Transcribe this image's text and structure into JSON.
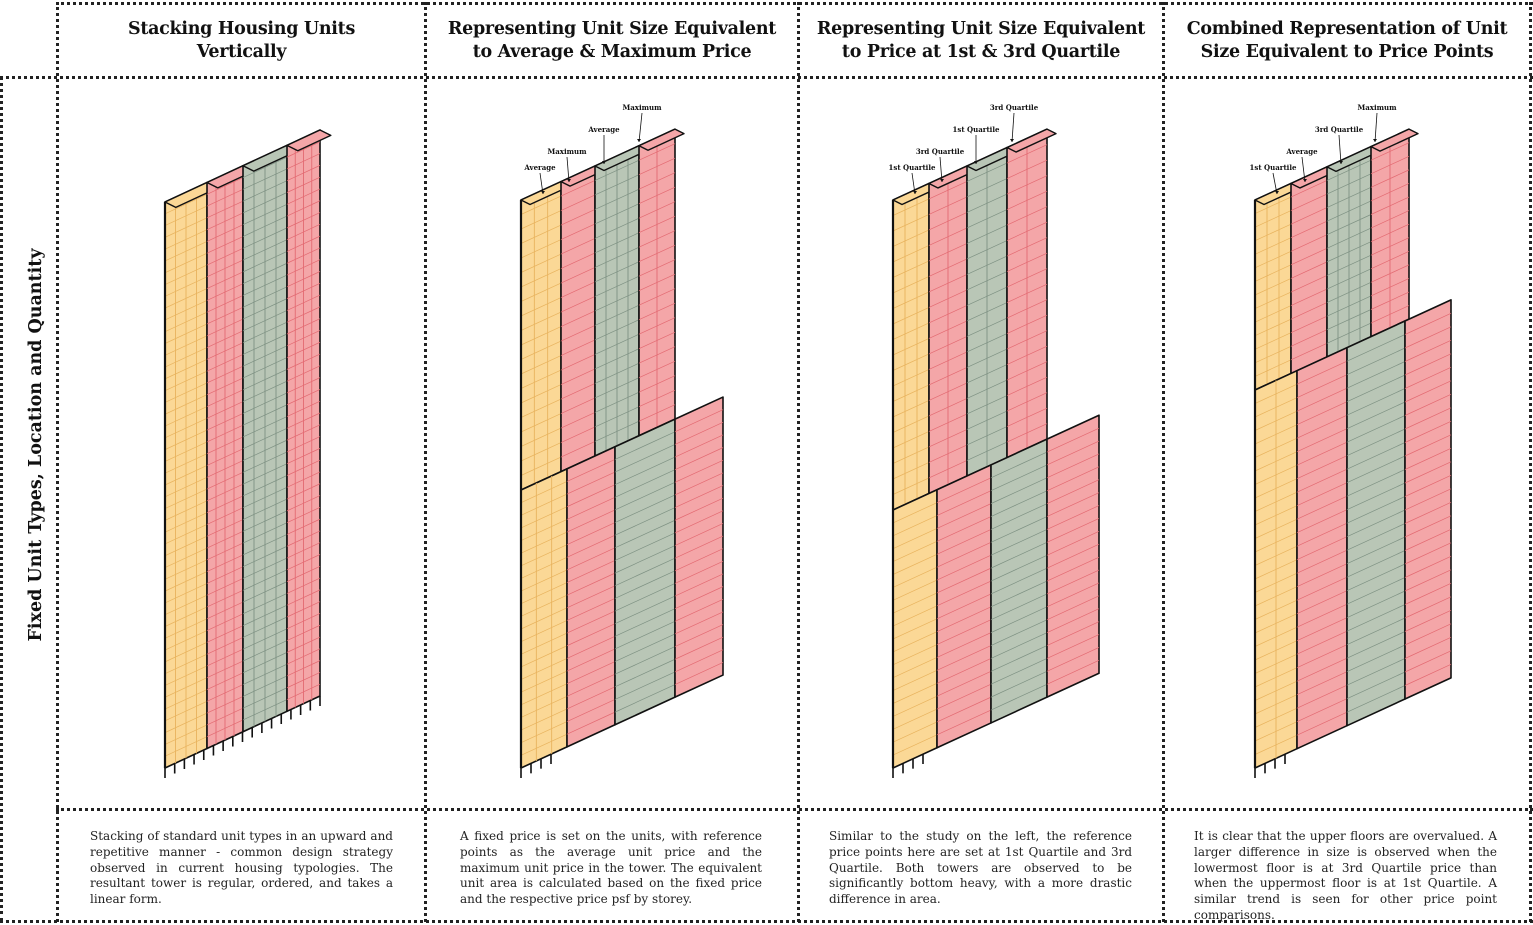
{
  "row_title": "Fixed Unit Types, Location and Quantity",
  "columns": [
    {
      "title_line1": "Stacking Housing Units",
      "title_line2": "Vertically",
      "description": "Stacking of standard unit types in an upward and repetitive manner - common design strategy observed in current housing typologies. The resultant tower is regular, ordered, and takes a linear form.",
      "labels": []
    },
    {
      "title_line1": "Representing Unit Size Equivalent",
      "title_line2": "to Average & Maximum Price",
      "description": "A fixed price is set on the units, with reference points as the average unit price and the maximum unit price in the tower. The equivalent unit area is calculated based on the fixed price and the respective price psf by storey.",
      "labels": [
        "Average",
        "Maximum",
        "Average",
        "Maximum"
      ]
    },
    {
      "title_line1": "Representing Unit Size Equivalent",
      "title_line2": "to Price at 1st & 3rd Quartile",
      "description": "Similar to the study on the left, the reference price points here are set at 1st Quartile and 3rd Quartile. Both towers are observed to be significantly bottom heavy, with a more drastic difference in area.",
      "labels": [
        "1st Quartile",
        "3rd Quartile",
        "1st Quartile",
        "3rd Quartile"
      ]
    },
    {
      "title_line1": "Combined Representation of Unit",
      "title_line2": "Size Equivalent to Price Points",
      "description": "It is clear that the upper floors are overvalued. A larger difference in size is observed when the lowermost floor is at 3rd Quartile price than when the uppermost floor is at 1st Quartile. A similar trend is seen for other price point comparisons.",
      "labels": [
        "1st Quartile",
        "Average",
        "3rd Quartile",
        "Maximum"
      ]
    }
  ],
  "colors": {
    "yellow": "#fbd896",
    "pink": "#f4a6a8",
    "green": "#b9c6b6",
    "outline": "#111111",
    "pink_line": "#e36a72",
    "green_line": "#7e9183",
    "yellow_line": "#e8b35e"
  }
}
